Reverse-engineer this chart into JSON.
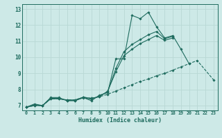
{
  "xlabel": "Humidex (Indice chaleur)",
  "background_color": "#cde9e7",
  "line_color": "#1e6b5e",
  "grid_color": "#b8d8d5",
  "xlim": [
    -0.5,
    23.5
  ],
  "ylim": [
    6.7,
    13.3
  ],
  "xticks": [
    0,
    1,
    2,
    3,
    4,
    5,
    6,
    7,
    8,
    9,
    10,
    11,
    12,
    13,
    14,
    15,
    16,
    17,
    18,
    19,
    20,
    21,
    22,
    23
  ],
  "yticks": [
    7,
    8,
    9,
    10,
    11,
    12,
    13
  ],
  "line1_y": [
    6.9,
    7.1,
    7.0,
    7.5,
    7.5,
    7.3,
    7.3,
    7.5,
    7.3,
    7.65,
    7.8,
    9.9,
    9.9,
    12.6,
    12.4,
    12.8,
    11.9,
    11.2,
    11.35,
    10.5,
    9.6,
    null,
    null,
    null
  ],
  "line2_y": [
    6.9,
    7.05,
    7.0,
    7.45,
    7.45,
    7.32,
    7.32,
    7.48,
    7.4,
    7.6,
    7.85,
    9.3,
    10.35,
    10.8,
    11.1,
    11.4,
    11.6,
    11.15,
    11.3,
    null,
    null,
    null,
    null,
    null
  ],
  "line3_y": [
    6.9,
    7.0,
    7.0,
    7.42,
    7.42,
    7.35,
    7.35,
    7.52,
    7.45,
    7.55,
    7.9,
    9.1,
    10.1,
    10.5,
    10.85,
    11.1,
    11.35,
    11.05,
    11.2,
    null,
    null,
    null,
    null,
    null
  ],
  "line4_y": [
    6.9,
    7.0,
    7.0,
    7.42,
    7.42,
    7.35,
    7.35,
    7.52,
    7.45,
    7.55,
    7.7,
    7.9,
    8.1,
    8.3,
    8.5,
    8.65,
    8.85,
    9.0,
    9.2,
    9.4,
    9.6,
    9.8,
    null,
    8.6
  ],
  "line4_dashed": true
}
